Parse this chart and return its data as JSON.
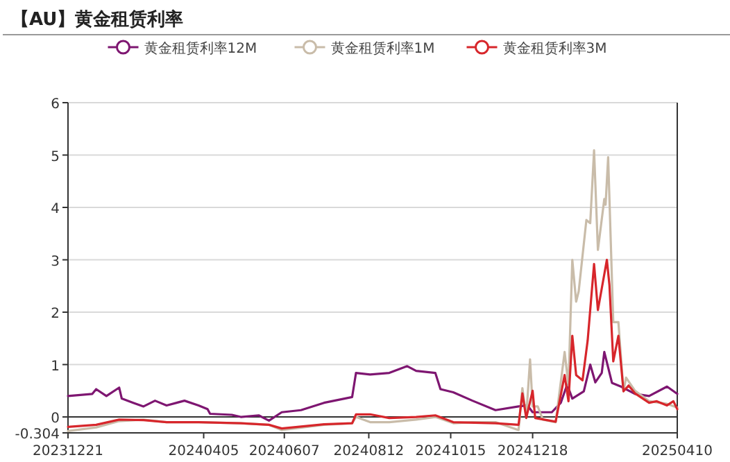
{
  "chart_data": {
    "type": "line",
    "title": "【AU】黄金租赁利率",
    "xlim": [
      "2023-12-21",
      "2025-04-10"
    ],
    "xticks": [
      {
        "value": "2023-12-21",
        "label": "20231221"
      },
      {
        "value": "2024-04-05",
        "label": "20240405"
      },
      {
        "value": "2024-06-07",
        "label": "20240607"
      },
      {
        "value": "2024-08-12",
        "label": "20240812"
      },
      {
        "value": "2024-10-15",
        "label": "20241015"
      },
      {
        "value": "2024-12-18",
        "label": "20241218"
      },
      {
        "value": "2025-04-10",
        "label": "20250410"
      }
    ],
    "ylim": [
      -0.304,
      6
    ],
    "yticks": [
      -0.304,
      0,
      1,
      2,
      3,
      4,
      5,
      6
    ],
    "grid": "y",
    "legend": "top",
    "line_style": "solid",
    "series": [
      {
        "name": "黄金租赁利率12M",
        "color": "#7e1671",
        "x": [
          "2023-12-21",
          "2024-01-09",
          "2024-01-12",
          "2024-01-20",
          "2024-01-30",
          "2024-02-01",
          "2024-02-10",
          "2024-02-18",
          "2024-02-27",
          "2024-03-07",
          "2024-03-21",
          "2024-04-01",
          "2024-04-08",
          "2024-04-10",
          "2024-04-27",
          "2024-05-04",
          "2024-05-18",
          "2024-05-26",
          "2024-06-05",
          "2024-06-20",
          "2024-07-08",
          "2024-07-30",
          "2024-08-02",
          "2024-08-13",
          "2024-08-28",
          "2024-09-11",
          "2024-09-18",
          "2024-10-03",
          "2024-10-07",
          "2024-10-17",
          "2024-11-01",
          "2024-11-19",
          "2024-12-07",
          "2024-12-14",
          "2024-12-18",
          "2025-01-02",
          "2025-01-09",
          "2025-01-14",
          "2025-01-18",
          "2025-01-27",
          "2025-02-01",
          "2025-02-05",
          "2025-02-10",
          "2025-02-12",
          "2025-02-18",
          "2025-02-25",
          "2025-03-08",
          "2025-03-19",
          "2025-04-02",
          "2025-04-10"
        ],
        "values": [
          0.4,
          0.44,
          0.53,
          0.4,
          0.56,
          0.35,
          0.27,
          0.2,
          0.31,
          0.22,
          0.31,
          0.22,
          0.15,
          0.06,
          0.04,
          0.0,
          0.03,
          -0.07,
          0.09,
          0.13,
          0.27,
          0.38,
          0.84,
          0.81,
          0.84,
          0.97,
          0.88,
          0.84,
          0.53,
          0.47,
          0.31,
          0.13,
          0.2,
          0.22,
          0.09,
          0.09,
          0.27,
          0.62,
          0.35,
          0.49,
          1.0,
          0.66,
          0.84,
          1.24,
          0.65,
          0.58,
          0.44,
          0.4,
          0.58,
          0.44
        ]
      },
      {
        "name": "黄金租赁利率1M",
        "color": "#c9bca9",
        "x": [
          "2023-12-21",
          "2024-01-12",
          "2024-01-30",
          "2024-02-18",
          "2024-03-07",
          "2024-04-01",
          "2024-05-04",
          "2024-05-26",
          "2024-06-05",
          "2024-07-08",
          "2024-07-30",
          "2024-08-02",
          "2024-08-13",
          "2024-08-28",
          "2024-09-18",
          "2024-10-03",
          "2024-10-17",
          "2024-11-01",
          "2024-11-19",
          "2024-12-07",
          "2024-12-10",
          "2024-12-13",
          "2024-12-16",
          "2024-12-18",
          "2024-12-22",
          "2024-12-26",
          "2025-01-05",
          "2025-01-12",
          "2025-01-15",
          "2025-01-18",
          "2025-01-21",
          "2025-01-23",
          "2025-01-29",
          "2025-02-01",
          "2025-02-04",
          "2025-02-07",
          "2025-02-12",
          "2025-02-13",
          "2025-02-15",
          "2025-02-19",
          "2025-02-23",
          "2025-02-27",
          "2025-03-01",
          "2025-03-08",
          "2025-03-19",
          "2025-04-02",
          "2025-04-10"
        ],
        "values": [
          -0.27,
          -0.2,
          -0.08,
          -0.05,
          -0.1,
          -0.1,
          -0.12,
          -0.15,
          -0.25,
          -0.15,
          -0.12,
          0.0,
          -0.1,
          -0.1,
          -0.05,
          0.0,
          -0.12,
          -0.1,
          -0.1,
          -0.25,
          0.55,
          0.0,
          1.1,
          0.2,
          0.2,
          -0.05,
          -0.1,
          1.24,
          0.6,
          3.0,
          2.2,
          2.4,
          3.76,
          3.7,
          5.09,
          3.19,
          4.16,
          4.05,
          4.96,
          1.81,
          1.81,
          0.49,
          0.75,
          0.5,
          0.3,
          0.25,
          0.18
        ]
      },
      {
        "name": "黄金租赁利率3M",
        "color": "#d7262b",
        "x": [
          "2023-12-21",
          "2024-01-12",
          "2024-01-30",
          "2024-02-18",
          "2024-03-07",
          "2024-04-01",
          "2024-05-04",
          "2024-05-26",
          "2024-06-05",
          "2024-07-08",
          "2024-07-30",
          "2024-08-02",
          "2024-08-13",
          "2024-08-28",
          "2024-09-18",
          "2024-10-03",
          "2024-10-17",
          "2024-11-19",
          "2024-12-07",
          "2024-12-10",
          "2024-12-13",
          "2024-12-18",
          "2024-12-20",
          "2025-01-05",
          "2025-01-12",
          "2025-01-15",
          "2025-01-18",
          "2025-01-21",
          "2025-01-26",
          "2025-01-30",
          "2025-02-04",
          "2025-02-07",
          "2025-02-14",
          "2025-02-16",
          "2025-02-19",
          "2025-02-23",
          "2025-02-27",
          "2025-03-03",
          "2025-03-08",
          "2025-03-19",
          "2025-03-25",
          "2025-04-02",
          "2025-04-07",
          "2025-04-10"
        ],
        "values": [
          -0.19,
          -0.15,
          -0.05,
          -0.06,
          -0.1,
          -0.1,
          -0.12,
          -0.15,
          -0.22,
          -0.14,
          -0.12,
          0.05,
          0.05,
          -0.02,
          0.0,
          0.03,
          -0.1,
          -0.12,
          -0.15,
          0.45,
          -0.02,
          0.5,
          -0.02,
          -0.09,
          0.8,
          0.3,
          1.55,
          0.8,
          0.7,
          1.46,
          2.92,
          2.04,
          3.0,
          2.52,
          1.06,
          1.55,
          0.49,
          0.6,
          0.45,
          0.27,
          0.3,
          0.22,
          0.3,
          0.15
        ]
      }
    ]
  }
}
